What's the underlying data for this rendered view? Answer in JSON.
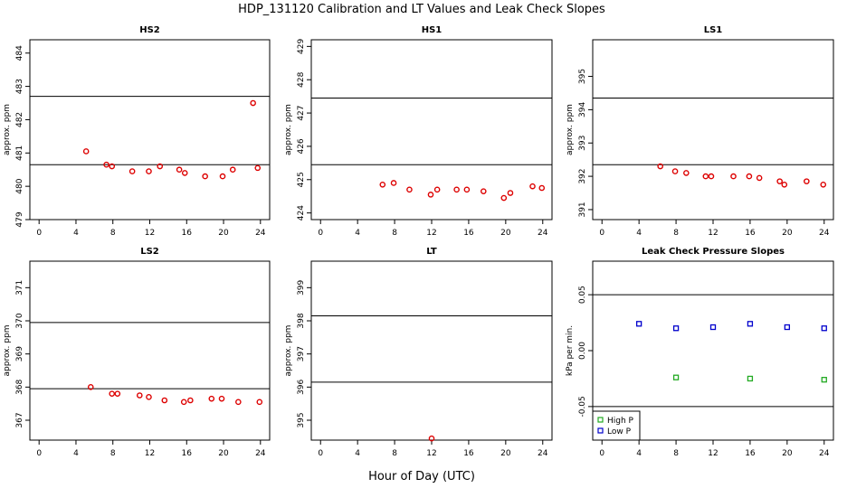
{
  "title": "HDP_131120  Calibration and LT Values and Leak Check Slopes",
  "xlabel": "Hour of Day (UTC)",
  "colors": {
    "points": "#dd0000",
    "frame": "#000000",
    "high": "#22aa22",
    "low": "#0000cc"
  },
  "chart_data": [
    {
      "type": "scatter",
      "title": "HS2",
      "ylabel": "approx. ppm",
      "xlim": [
        -1,
        25
      ],
      "ylim": [
        479,
        484.4
      ],
      "xticks": [
        0,
        4,
        8,
        12,
        16,
        20,
        24
      ],
      "yticks": [
        479,
        480,
        481,
        482,
        483,
        484
      ],
      "hlines": [
        482.7,
        480.65
      ],
      "series": [
        {
          "x": [
            5.1,
            7.3,
            7.9,
            10.1,
            11.9,
            13.1,
            15.2,
            15.8,
            18.0,
            19.9,
            21.0,
            23.2,
            23.7
          ],
          "y": [
            481.05,
            480.65,
            480.6,
            480.45,
            480.45,
            480.6,
            480.5,
            480.4,
            480.3,
            480.3,
            480.5,
            482.5,
            480.55
          ]
        }
      ]
    },
    {
      "type": "scatter",
      "title": "HS1",
      "ylabel": "approx. ppm",
      "xlim": [
        -1,
        25
      ],
      "ylim": [
        423.8,
        429.2
      ],
      "xticks": [
        0,
        4,
        8,
        12,
        16,
        20,
        24
      ],
      "yticks": [
        424,
        425,
        426,
        427,
        428,
        429
      ],
      "hlines": [
        427.45,
        425.45
      ],
      "series": [
        {
          "x": [
            6.7,
            7.9,
            9.6,
            11.9,
            12.6,
            14.7,
            15.8,
            17.6,
            19.8,
            20.5,
            22.9,
            23.9
          ],
          "y": [
            424.85,
            424.9,
            424.7,
            424.55,
            424.7,
            424.7,
            424.7,
            424.65,
            424.45,
            424.6,
            424.8,
            424.75
          ]
        }
      ]
    },
    {
      "type": "scatter",
      "title": "LS1",
      "ylabel": "approx. ppm",
      "xlim": [
        -1,
        25
      ],
      "ylim": [
        390.7,
        396.1
      ],
      "xticks": [
        0,
        4,
        8,
        12,
        16,
        20,
        24
      ],
      "yticks": [
        391,
        392,
        393,
        394,
        395
      ],
      "hlines": [
        394.35,
        392.35
      ],
      "series": [
        {
          "x": [
            6.3,
            7.9,
            9.1,
            11.2,
            11.8,
            14.2,
            15.9,
            17.0,
            19.2,
            19.7,
            22.1,
            23.9
          ],
          "y": [
            392.3,
            392.15,
            392.1,
            392.0,
            392.0,
            392.0,
            392.0,
            391.95,
            391.85,
            391.75,
            391.85,
            391.75
          ]
        }
      ]
    },
    {
      "type": "scatter",
      "title": "LS2",
      "ylabel": "approx. ppm",
      "xlim": [
        -1,
        25
      ],
      "ylim": [
        366.4,
        371.8
      ],
      "xticks": [
        0,
        4,
        8,
        12,
        16,
        20,
        24
      ],
      "yticks": [
        367,
        368,
        369,
        370,
        371
      ],
      "hlines": [
        369.95,
        367.95
      ],
      "series": [
        {
          "x": [
            5.6,
            7.9,
            8.5,
            10.9,
            11.9,
            13.6,
            15.7,
            16.4,
            18.7,
            19.8,
            21.6,
            23.9
          ],
          "y": [
            368.0,
            367.8,
            367.8,
            367.75,
            367.7,
            367.6,
            367.55,
            367.6,
            367.65,
            367.65,
            367.55,
            367.55
          ]
        }
      ]
    },
    {
      "type": "scatter",
      "title": "LT",
      "ylabel": "approx. ppm",
      "xlim": [
        -1,
        25
      ],
      "ylim": [
        394.4,
        399.8
      ],
      "xticks": [
        0,
        4,
        8,
        12,
        16,
        20,
        24
      ],
      "yticks": [
        395,
        396,
        397,
        398,
        399
      ],
      "hlines": [
        398.15,
        396.15
      ],
      "series": [
        {
          "x": [
            12.0
          ],
          "y": [
            394.45
          ]
        }
      ]
    },
    {
      "type": "scatter",
      "title": "Leak Check Pressure Slopes",
      "ylabel": "kPa per min.",
      "xlim": [
        -1,
        25
      ],
      "ylim": [
        -0.08,
        0.08
      ],
      "xticks": [
        0,
        4,
        8,
        12,
        16,
        20,
        24
      ],
      "yticks": [
        -0.05,
        0.0,
        0.05
      ],
      "ytick_labels": [
        "-0.05",
        "0.00",
        "0.05"
      ],
      "hlines": [
        0.05,
        -0.05
      ],
      "legend": "bottom-left",
      "series": [
        {
          "name": "High P",
          "color": "#22aa22",
          "x": [
            8,
            16,
            24
          ],
          "y": [
            -0.024,
            -0.025,
            -0.026
          ]
        },
        {
          "name": "Low P",
          "color": "#0000cc",
          "x": [
            4,
            8,
            12,
            16,
            20,
            24
          ],
          "y": [
            0.024,
            0.02,
            0.021,
            0.024,
            0.021,
            0.02
          ]
        }
      ]
    }
  ]
}
